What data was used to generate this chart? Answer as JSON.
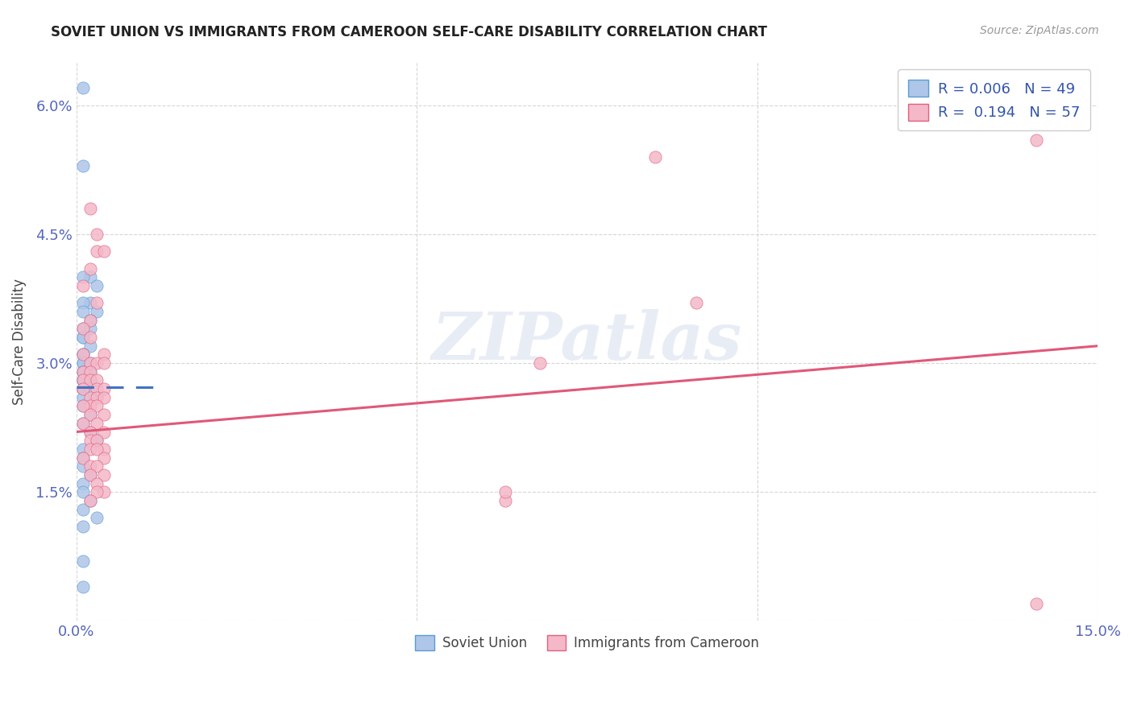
{
  "title": "SOVIET UNION VS IMMIGRANTS FROM CAMEROON SELF-CARE DISABILITY CORRELATION CHART",
  "source": "Source: ZipAtlas.com",
  "ylabel": "Self-Care Disability",
  "xlim": [
    0.0,
    0.15
  ],
  "ylim": [
    0.0,
    0.065
  ],
  "xtick_positions": [
    0.0,
    0.05,
    0.1,
    0.15
  ],
  "xtick_labels": [
    "0.0%",
    "",
    "",
    "15.0%"
  ],
  "ytick_positions": [
    0.0,
    0.015,
    0.03,
    0.045,
    0.06
  ],
  "ytick_labels": [
    "",
    "1.5%",
    "3.0%",
    "4.5%",
    "6.0%"
  ],
  "blue_face_color": "#aec6e8",
  "blue_edge_color": "#5b9bd5",
  "pink_face_color": "#f4b8c8",
  "pink_edge_color": "#e06080",
  "blue_trend_color": "#4472c4",
  "pink_trend_color": "#e05878",
  "legend_r_blue": "0.006",
  "legend_n_blue": "49",
  "legend_r_pink": "0.194",
  "legend_n_pink": "57",
  "legend_label_blue": "Soviet Union",
  "legend_label_pink": "Immigrants from Cameroon",
  "watermark": "ZIPatlas",
  "blue_trend_x": [
    0.0,
    0.012
  ],
  "blue_trend_y": [
    0.0272,
    0.0272
  ],
  "pink_trend_x": [
    0.0,
    0.15
  ],
  "pink_trend_y": [
    0.022,
    0.032
  ],
  "blue_scatter": [
    [
      0.001,
      0.062
    ],
    [
      0.001,
      0.053
    ],
    [
      0.002,
      0.04
    ],
    [
      0.001,
      0.04
    ],
    [
      0.003,
      0.039
    ],
    [
      0.002,
      0.037
    ],
    [
      0.001,
      0.037
    ],
    [
      0.003,
      0.036
    ],
    [
      0.001,
      0.036
    ],
    [
      0.002,
      0.035
    ],
    [
      0.001,
      0.034
    ],
    [
      0.002,
      0.034
    ],
    [
      0.001,
      0.033
    ],
    [
      0.001,
      0.033
    ],
    [
      0.002,
      0.032
    ],
    [
      0.001,
      0.031
    ],
    [
      0.001,
      0.031
    ],
    [
      0.001,
      0.03
    ],
    [
      0.002,
      0.03
    ],
    [
      0.001,
      0.03
    ],
    [
      0.001,
      0.029
    ],
    [
      0.002,
      0.029
    ],
    [
      0.001,
      0.029
    ],
    [
      0.002,
      0.028
    ],
    [
      0.001,
      0.028
    ],
    [
      0.001,
      0.028
    ],
    [
      0.002,
      0.028
    ],
    [
      0.001,
      0.027
    ],
    [
      0.001,
      0.027
    ],
    [
      0.002,
      0.027
    ],
    [
      0.001,
      0.026
    ],
    [
      0.003,
      0.026
    ],
    [
      0.001,
      0.025
    ],
    [
      0.002,
      0.024
    ],
    [
      0.001,
      0.023
    ],
    [
      0.002,
      0.022
    ],
    [
      0.003,
      0.021
    ],
    [
      0.001,
      0.02
    ],
    [
      0.001,
      0.019
    ],
    [
      0.001,
      0.018
    ],
    [
      0.002,
      0.017
    ],
    [
      0.001,
      0.016
    ],
    [
      0.001,
      0.015
    ],
    [
      0.002,
      0.014
    ],
    [
      0.001,
      0.013
    ],
    [
      0.003,
      0.012
    ],
    [
      0.001,
      0.011
    ],
    [
      0.001,
      0.007
    ],
    [
      0.001,
      0.004
    ]
  ],
  "pink_scatter": [
    [
      0.002,
      0.048
    ],
    [
      0.003,
      0.045
    ],
    [
      0.003,
      0.043
    ],
    [
      0.004,
      0.043
    ],
    [
      0.002,
      0.041
    ],
    [
      0.001,
      0.039
    ],
    [
      0.003,
      0.037
    ],
    [
      0.002,
      0.035
    ],
    [
      0.001,
      0.034
    ],
    [
      0.002,
      0.033
    ],
    [
      0.004,
      0.031
    ],
    [
      0.001,
      0.031
    ],
    [
      0.002,
      0.03
    ],
    [
      0.003,
      0.03
    ],
    [
      0.004,
      0.03
    ],
    [
      0.001,
      0.029
    ],
    [
      0.002,
      0.029
    ],
    [
      0.001,
      0.028
    ],
    [
      0.002,
      0.028
    ],
    [
      0.003,
      0.028
    ],
    [
      0.001,
      0.027
    ],
    [
      0.003,
      0.027
    ],
    [
      0.004,
      0.027
    ],
    [
      0.002,
      0.026
    ],
    [
      0.003,
      0.026
    ],
    [
      0.004,
      0.026
    ],
    [
      0.002,
      0.025
    ],
    [
      0.003,
      0.025
    ],
    [
      0.001,
      0.025
    ],
    [
      0.004,
      0.024
    ],
    [
      0.002,
      0.024
    ],
    [
      0.003,
      0.023
    ],
    [
      0.001,
      0.023
    ],
    [
      0.002,
      0.022
    ],
    [
      0.004,
      0.022
    ],
    [
      0.002,
      0.021
    ],
    [
      0.003,
      0.021
    ],
    [
      0.004,
      0.02
    ],
    [
      0.002,
      0.02
    ],
    [
      0.003,
      0.02
    ],
    [
      0.001,
      0.019
    ],
    [
      0.004,
      0.019
    ],
    [
      0.002,
      0.018
    ],
    [
      0.003,
      0.018
    ],
    [
      0.004,
      0.017
    ],
    [
      0.002,
      0.017
    ],
    [
      0.003,
      0.016
    ],
    [
      0.004,
      0.015
    ],
    [
      0.003,
      0.015
    ],
    [
      0.002,
      0.014
    ],
    [
      0.085,
      0.054
    ],
    [
      0.091,
      0.037
    ],
    [
      0.063,
      0.014
    ],
    [
      0.063,
      0.015
    ],
    [
      0.068,
      0.03
    ],
    [
      0.141,
      0.002
    ],
    [
      0.141,
      0.056
    ]
  ]
}
